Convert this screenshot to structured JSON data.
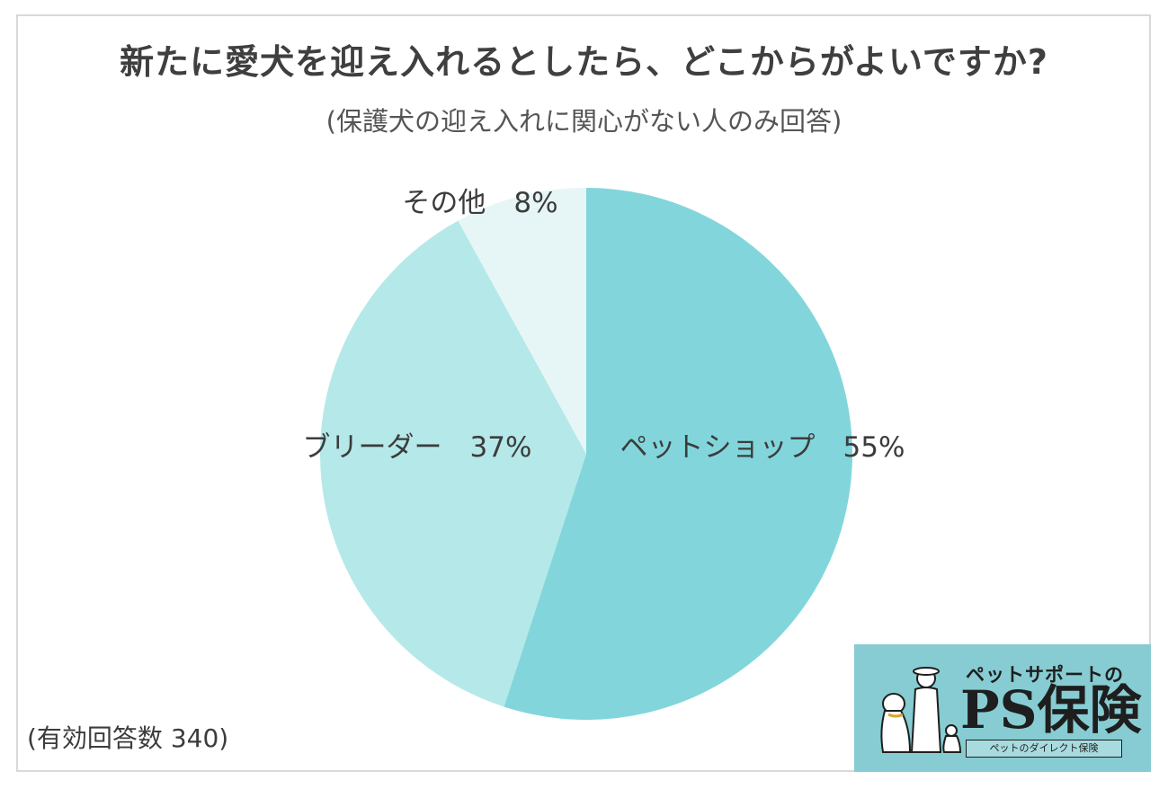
{
  "title": "新たに愛犬を迎え入れるとしたら、どこからがよいですか?",
  "subtitle": "(保護犬の迎え入れに関心がない人のみ回答)",
  "footnote": "(有効回答数 340)",
  "logo": {
    "subtitle": "ペットサポートの",
    "name": "PS保険",
    "tagline": "ペットのダイレクト保険"
  },
  "chart_data": {
    "type": "pie",
    "slices": [
      {
        "label": "ペットショップ",
        "value": 55,
        "display": "ペットショップ　55%",
        "color": "#82d6db"
      },
      {
        "label": "ブリーダー",
        "value": 37,
        "display": "ブリーダー　37%",
        "color": "#b5e8e9"
      },
      {
        "label": "その他",
        "value": 8,
        "display": "その他　8%",
        "color": "#e6f6f6"
      }
    ],
    "start": "12 o'clock",
    "direction": "clockwise"
  }
}
